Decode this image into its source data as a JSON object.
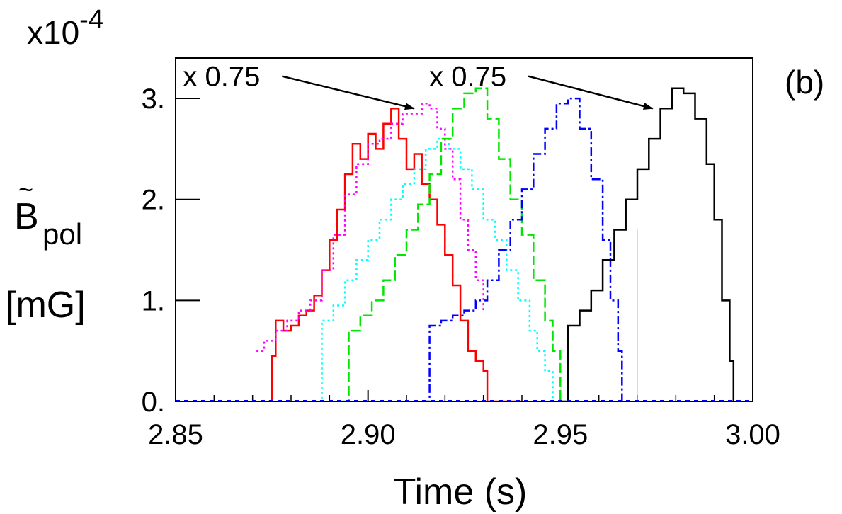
{
  "chart_data": {
    "type": "line",
    "xlabel": "Time (s)",
    "ylabel_lines": [
      "B̃",
      "pol",
      "[mG]"
    ],
    "ylabel_symbol": "B",
    "ylabel_sub": "pol",
    "ylabel_unit": "[mG]",
    "scale_prefix": "x10",
    "scale_exponent": "-4",
    "panel_label": "(b)",
    "xlim": [
      2.85,
      3.0
    ],
    "ylim": [
      0,
      3.4
    ],
    "x_ticks": [
      2.85,
      2.9,
      2.95,
      3.0
    ],
    "x_tick_labels": [
      "2.85",
      "2.90",
      "2.95",
      "3.00"
    ],
    "y_ticks": [
      0,
      1,
      2,
      3
    ],
    "y_tick_labels": [
      "0.",
      "1.",
      "2.",
      "3."
    ],
    "grid": false,
    "annotations": [
      {
        "text": "x 0.75",
        "x_text": 2.874,
        "y_text": 3.22,
        "x_arrow": 2.912,
        "y_arrow": 2.9
      },
      {
        "text": "x 0.75",
        "x_text": 2.938,
        "y_text": 3.22,
        "x_arrow": 2.974,
        "y_arrow": 2.9
      }
    ],
    "series": [
      {
        "color": "#ff0000",
        "style": "solid",
        "x": [
          2.874,
          2.875,
          2.876,
          2.878,
          2.88,
          2.882,
          2.884,
          2.886,
          2.888,
          2.89,
          2.892,
          2.894,
          2.896,
          2.898,
          2.9,
          2.902,
          2.904,
          2.906,
          2.908,
          2.91,
          2.912,
          2.914,
          2.916,
          2.918,
          2.92,
          2.922,
          2.924,
          2.926,
          2.928,
          2.93,
          2.931,
          2.935,
          2.94
        ],
        "y": [
          0.0,
          0.45,
          0.8,
          0.7,
          0.75,
          0.85,
          0.9,
          1.05,
          1.3,
          1.6,
          1.9,
          2.25,
          2.55,
          2.4,
          2.65,
          2.5,
          2.75,
          2.9,
          2.6,
          2.3,
          2.45,
          2.15,
          2.0,
          1.75,
          1.45,
          1.15,
          0.8,
          0.5,
          0.4,
          0.3,
          0.0,
          0.0,
          0.0
        ]
      },
      {
        "color": "#ff00ff",
        "style": "dotted",
        "x": [
          2.871,
          2.873,
          2.876,
          2.879,
          2.882,
          2.885,
          2.888,
          2.891,
          2.894,
          2.897,
          2.9,
          2.903,
          2.906,
          2.909,
          2.912,
          2.914,
          2.916,
          2.918,
          2.92,
          2.922,
          2.924,
          2.926,
          2.928,
          2.93
        ],
        "y": [
          0.5,
          0.6,
          0.7,
          0.8,
          0.9,
          1.0,
          1.3,
          1.65,
          2.05,
          2.35,
          2.55,
          2.6,
          2.75,
          2.85,
          2.85,
          2.95,
          2.9,
          2.7,
          2.5,
          2.2,
          1.8,
          1.5,
          1.2,
          0.9
        ]
      },
      {
        "color": "#00ffff",
        "style": "dotted",
        "x": [
          2.886,
          2.888,
          2.891,
          2.894,
          2.897,
          2.9,
          2.903,
          2.906,
          2.909,
          2.912,
          2.915,
          2.918,
          2.921,
          2.924,
          2.927,
          2.93,
          2.933,
          2.936,
          2.939,
          2.942,
          2.944,
          2.946,
          2.948
        ],
        "y": [
          0.0,
          0.8,
          0.95,
          1.2,
          1.4,
          1.6,
          1.8,
          2.0,
          2.15,
          2.3,
          2.5,
          2.6,
          2.5,
          2.3,
          2.1,
          1.8,
          1.6,
          1.3,
          1.0,
          0.7,
          0.5,
          0.3,
          0.0
        ]
      },
      {
        "color": "#00e600",
        "style": "dashed",
        "x": [
          2.893,
          2.895,
          2.898,
          2.901,
          2.904,
          2.907,
          2.91,
          2.913,
          2.916,
          2.919,
          2.922,
          2.925,
          2.928,
          2.931,
          2.934,
          2.937,
          2.94,
          2.943,
          2.946,
          2.948,
          2.95
        ],
        "y": [
          0.0,
          0.7,
          0.85,
          1.0,
          1.2,
          1.45,
          1.7,
          1.95,
          2.25,
          2.6,
          2.9,
          3.05,
          3.1,
          2.8,
          2.4,
          2.0,
          1.65,
          1.2,
          0.8,
          0.5,
          0.0
        ]
      },
      {
        "color": "#0000ff",
        "style": "dashdot",
        "x": [
          2.914,
          2.916,
          2.919,
          2.922,
          2.925,
          2.928,
          2.931,
          2.934,
          2.937,
          2.94,
          2.943,
          2.946,
          2.949,
          2.952,
          2.955,
          2.958,
          2.961,
          2.963,
          2.965,
          2.966
        ],
        "y": [
          0.0,
          0.75,
          0.8,
          0.85,
          0.9,
          1.0,
          1.2,
          1.5,
          1.8,
          2.1,
          2.45,
          2.7,
          2.95,
          3.0,
          2.7,
          2.2,
          1.6,
          1.0,
          0.5,
          0.0
        ]
      },
      {
        "color": "#000000",
        "style": "solid",
        "x": [
          2.95,
          2.952,
          2.955,
          2.958,
          2.961,
          2.964,
          2.967,
          2.97,
          2.973,
          2.976,
          2.979,
          2.982,
          2.985,
          2.988,
          2.99,
          2.992,
          2.994,
          2.995
        ],
        "y": [
          0.0,
          0.75,
          0.9,
          1.1,
          1.4,
          1.7,
          2.0,
          2.3,
          2.6,
          2.9,
          3.1,
          3.05,
          2.8,
          2.35,
          1.8,
          1.0,
          0.4,
          0.0
        ]
      },
      {
        "color": "#b4b4b4",
        "style": "thin",
        "x": [
          2.85,
          2.97
        ],
        "y": [
          0.0,
          1.7
        ]
      }
    ]
  }
}
